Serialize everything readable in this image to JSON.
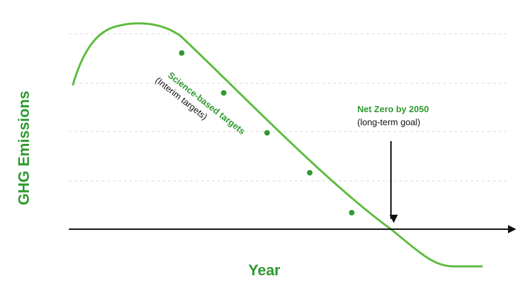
{
  "diagram": {
    "y_axis_label": "GHG Emissions",
    "x_axis_label": "Year",
    "targets_label": "Science-based targets",
    "targets_sublabel": "(Interim targets)",
    "net_zero_label": "Net Zero by 2050",
    "net_zero_sublabel": "(long-term goal)",
    "interim_target_count": 5,
    "colors": {
      "accent": "#5dbb3f",
      "label_green": "#2e9a2e",
      "axis": "#111111",
      "gridline": "#d9d9d9",
      "background": "#ffffff"
    }
  }
}
